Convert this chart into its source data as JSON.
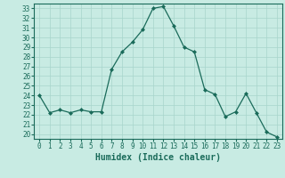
{
  "x": [
    0,
    1,
    2,
    3,
    4,
    5,
    6,
    7,
    8,
    9,
    10,
    11,
    12,
    13,
    14,
    15,
    16,
    17,
    18,
    19,
    20,
    21,
    22,
    23
  ],
  "y": [
    24.0,
    22.2,
    22.5,
    22.2,
    22.5,
    22.3,
    22.3,
    26.7,
    28.5,
    29.5,
    30.8,
    33.0,
    33.2,
    31.2,
    29.0,
    28.5,
    24.6,
    24.1,
    21.8,
    22.3,
    24.2,
    22.2,
    20.2,
    19.7
  ],
  "line_color": "#1a6b5a",
  "marker": "D",
  "marker_size": 2.0,
  "bg_color": "#c8ebe3",
  "grid_color": "#a8d5cb",
  "xlabel": "Humidex (Indice chaleur)",
  "xlim": [
    -0.5,
    23.5
  ],
  "ylim": [
    19.5,
    33.5
  ],
  "yticks": [
    20,
    21,
    22,
    23,
    24,
    25,
    26,
    27,
    28,
    29,
    30,
    31,
    32,
    33
  ],
  "xticks": [
    0,
    1,
    2,
    3,
    4,
    5,
    6,
    7,
    8,
    9,
    10,
    11,
    12,
    13,
    14,
    15,
    16,
    17,
    18,
    19,
    20,
    21,
    22,
    23
  ],
  "tick_fontsize": 5.5,
  "label_fontsize": 7.0
}
